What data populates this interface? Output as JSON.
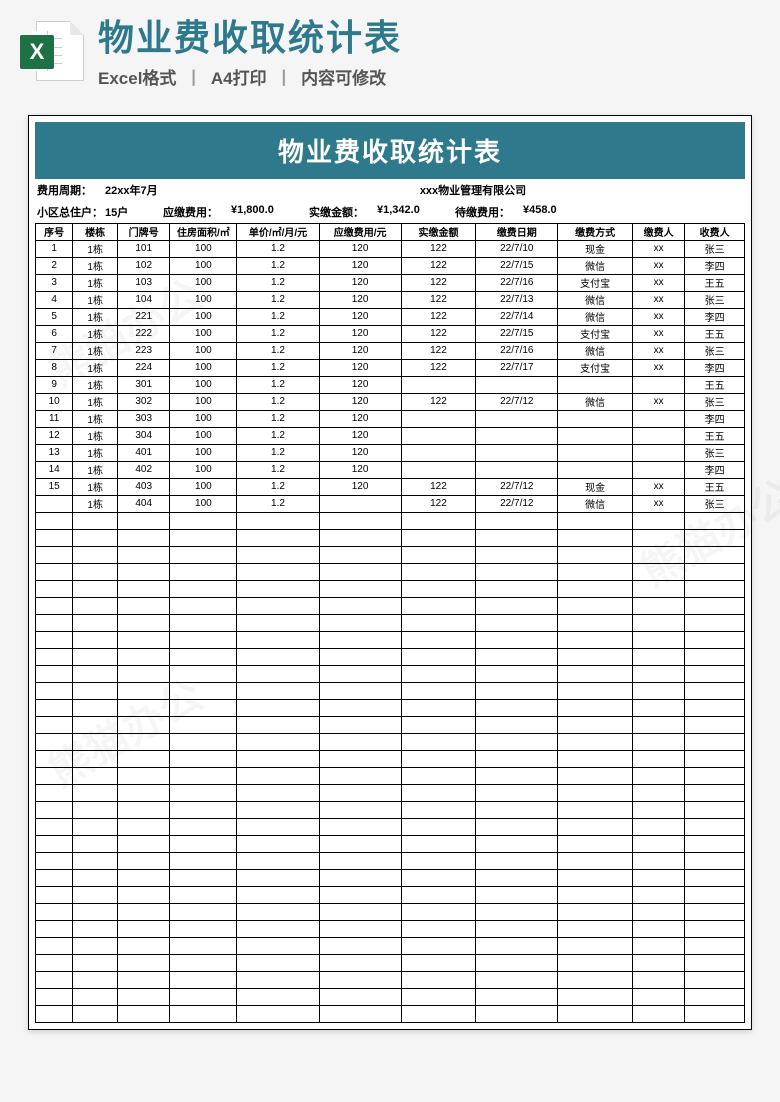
{
  "header": {
    "main_title": "物业费收取统计表",
    "sub_parts": [
      "Excel格式",
      "A4打印",
      "内容可修改"
    ],
    "separator": "丨",
    "title_color": "#2e7a8c",
    "excel_icon_color": "#1e7045",
    "excel_icon_letter": "X"
  },
  "sheet": {
    "banner_title": "物业费收取统计表",
    "banner_bg": "#2e7a8c",
    "banner_fg": "#ffffff",
    "meta_line1": {
      "period_label": "费用周期：",
      "period_value": "22xx年7月",
      "company": "xxx物业管理有限公司"
    },
    "meta_line2": {
      "households_label": "小区总住户：",
      "households_value": "15户",
      "due_label": "应缴费用：",
      "due_value": "¥1,800.0",
      "paid_label": "实缴金额：",
      "paid_value": "¥1,342.0",
      "pending_label": "待缴费用：",
      "pending_value": "¥458.0"
    },
    "columns": [
      "序号",
      "楼栋",
      "门牌号",
      "住房面积/㎡",
      "单价/㎡/月/元",
      "应缴费用/元",
      "实缴金额",
      "缴费日期",
      "缴费方式",
      "缴费人",
      "收费人"
    ],
    "rows": [
      [
        "1",
        "1栋",
        "101",
        "100",
        "1.2",
        "120",
        "122",
        "22/7/10",
        "现金",
        "xx",
        "张三"
      ],
      [
        "2",
        "1栋",
        "102",
        "100",
        "1.2",
        "120",
        "122",
        "22/7/15",
        "微信",
        "xx",
        "李四"
      ],
      [
        "3",
        "1栋",
        "103",
        "100",
        "1.2",
        "120",
        "122",
        "22/7/16",
        "支付宝",
        "xx",
        "王五"
      ],
      [
        "4",
        "1栋",
        "104",
        "100",
        "1.2",
        "120",
        "122",
        "22/7/13",
        "微信",
        "xx",
        "张三"
      ],
      [
        "5",
        "1栋",
        "221",
        "100",
        "1.2",
        "120",
        "122",
        "22/7/14",
        "微信",
        "xx",
        "李四"
      ],
      [
        "6",
        "1栋",
        "222",
        "100",
        "1.2",
        "120",
        "122",
        "22/7/15",
        "支付宝",
        "xx",
        "王五"
      ],
      [
        "7",
        "1栋",
        "223",
        "100",
        "1.2",
        "120",
        "122",
        "22/7/16",
        "微信",
        "xx",
        "张三"
      ],
      [
        "8",
        "1栋",
        "224",
        "100",
        "1.2",
        "120",
        "122",
        "22/7/17",
        "支付宝",
        "xx",
        "李四"
      ],
      [
        "9",
        "1栋",
        "301",
        "100",
        "1.2",
        "120",
        "",
        "",
        "",
        "",
        "王五"
      ],
      [
        "10",
        "1栋",
        "302",
        "100",
        "1.2",
        "120",
        "122",
        "22/7/12",
        "微信",
        "xx",
        "张三"
      ],
      [
        "11",
        "1栋",
        "303",
        "100",
        "1.2",
        "120",
        "",
        "",
        "",
        "",
        "李四"
      ],
      [
        "12",
        "1栋",
        "304",
        "100",
        "1.2",
        "120",
        "",
        "",
        "",
        "",
        "王五"
      ],
      [
        "13",
        "1栋",
        "401",
        "100",
        "1.2",
        "120",
        "",
        "",
        "",
        "",
        "张三"
      ],
      [
        "14",
        "1栋",
        "402",
        "100",
        "1.2",
        "120",
        "",
        "",
        "",
        "",
        "李四"
      ],
      [
        "15",
        "1栋",
        "403",
        "100",
        "1.2",
        "120",
        "122",
        "22/7/12",
        "现金",
        "xx",
        "王五"
      ],
      [
        "",
        "1栋",
        "404",
        "100",
        "1.2",
        "",
        "122",
        "22/7/12",
        "微信",
        "xx",
        "张三"
      ]
    ],
    "empty_rows": 30,
    "border_color": "#000000",
    "column_widths_pct": [
      5,
      6,
      7,
      9,
      11,
      11,
      10,
      11,
      10,
      7,
      8
    ]
  },
  "watermark": {
    "text": "熊猫办公"
  }
}
